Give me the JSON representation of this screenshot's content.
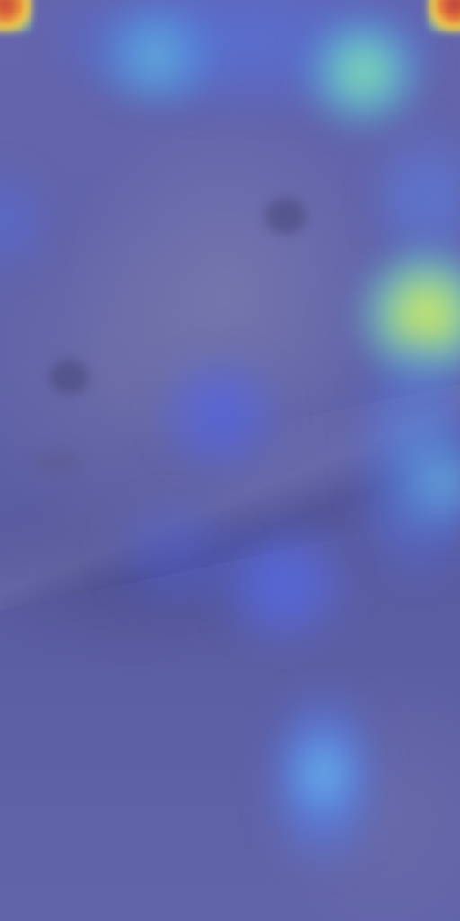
{
  "image": {
    "subject": "",
    "overlay": "heatmap",
    "colors": {
      "base": "#5d5fa6",
      "low": "#5b5fd8",
      "mid": "#6fd3d8",
      "high": "#e9e24a",
      "peak": "#c8443a"
    }
  }
}
